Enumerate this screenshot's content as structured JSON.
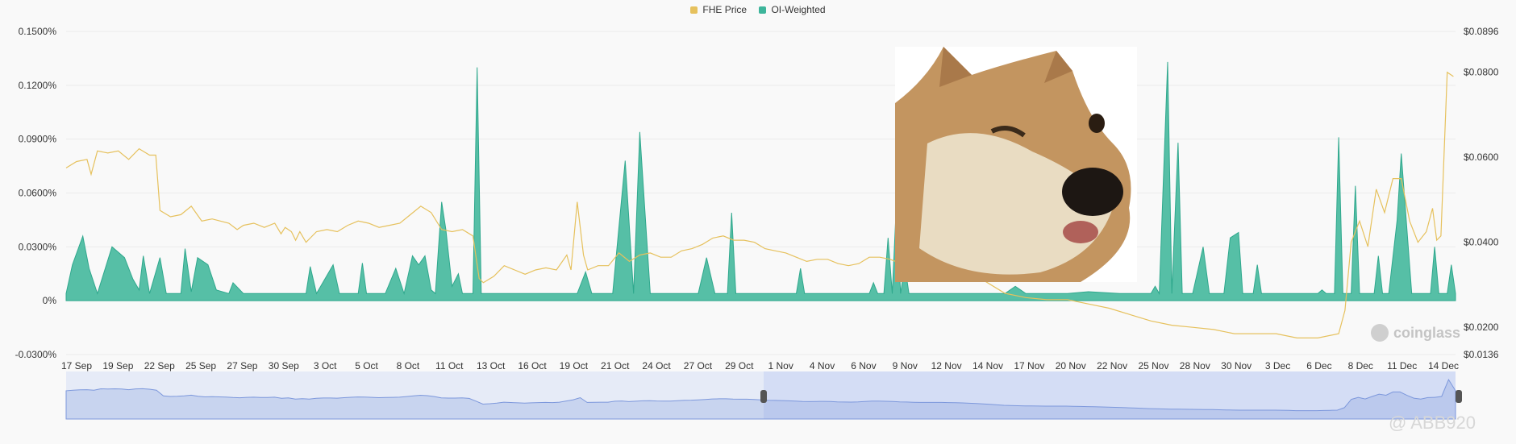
{
  "legend": {
    "items": [
      {
        "label": "FHE Price",
        "color": "#e6c15d"
      },
      {
        "label": "OI-Weighted",
        "color": "#3db59b"
      }
    ]
  },
  "watermark": {
    "brand": "coinglass",
    "user": "@ ABB920"
  },
  "photo": {
    "icon": "winking-shiba-dog"
  },
  "chart_data": {
    "type": "area",
    "y_left": {
      "ticks": [
        "0.1500%",
        "0.1200%",
        "0.0900%",
        "0.0600%",
        "0.0300%",
        "0%",
        "-0.0300%"
      ],
      "range": [
        -0.03,
        0.15
      ],
      "unit": "%"
    },
    "y_right": {
      "ticks": [
        "$0.0896",
        "$0.0800",
        "$0.0600",
        "$0.0400",
        "$0.0200",
        "$0.0136"
      ],
      "range": [
        0.0136,
        0.0896
      ]
    },
    "x_ticks": [
      "17 Sep",
      "19 Sep",
      "22 Sep",
      "25 Sep",
      "27 Sep",
      "30 Sep",
      "3 Oct",
      "5 Oct",
      "8 Oct",
      "11 Oct",
      "13 Oct",
      "16 Oct",
      "19 Oct",
      "21 Oct",
      "24 Oct",
      "27 Oct",
      "29 Oct",
      "1 Nov",
      "4 Nov",
      "6 Nov",
      "9 Nov",
      "12 Nov",
      "14 Nov",
      "17 Nov",
      "20 Nov",
      "22 Nov",
      "25 Nov",
      "28 Nov",
      "30 Nov",
      "3 Dec",
      "6 Dec",
      "8 Dec",
      "11 Dec",
      "14 Dec"
    ],
    "grid": true,
    "series": [
      {
        "name": "OI-Weighted",
        "color": "#3db59b",
        "axis": "left",
        "points": [
          [
            0,
            0.004
          ],
          [
            3,
            0.02
          ],
          [
            8,
            0.036
          ],
          [
            11,
            0.018
          ],
          [
            15,
            0.004
          ],
          [
            22,
            0.03
          ],
          [
            28,
            0.024
          ],
          [
            32,
            0.012
          ],
          [
            35,
            0.006
          ],
          [
            37,
            0.025
          ],
          [
            40,
            0.004
          ],
          [
            45,
            0.024
          ],
          [
            48,
            0.004
          ],
          [
            55,
            0.004
          ],
          [
            57,
            0.029
          ],
          [
            60,
            0.005
          ],
          [
            63,
            0.024
          ],
          [
            68,
            0.02
          ],
          [
            72,
            0.006
          ],
          [
            78,
            0.004
          ],
          [
            80,
            0.01
          ],
          [
            85,
            0.004
          ],
          [
            115,
            0.004
          ],
          [
            117,
            0.019
          ],
          [
            120,
            0.004
          ],
          [
            128,
            0.02
          ],
          [
            131,
            0.004
          ],
          [
            140,
            0.004
          ],
          [
            142,
            0.021
          ],
          [
            144,
            0.004
          ],
          [
            153,
            0.004
          ],
          [
            158,
            0.018
          ],
          [
            162,
            0.004
          ],
          [
            166,
            0.025
          ],
          [
            169,
            0.02
          ],
          [
            172,
            0.025
          ],
          [
            175,
            0.006
          ],
          [
            177,
            0.004
          ],
          [
            180,
            0.055
          ],
          [
            182,
            0.04
          ],
          [
            185,
            0.008
          ],
          [
            188,
            0.015
          ],
          [
            190,
            0.004
          ],
          [
            195,
            0.004
          ],
          [
            197,
            0.13
          ],
          [
            199,
            0.004
          ],
          [
            245,
            0.004
          ],
          [
            249,
            0.016
          ],
          [
            252,
            0.004
          ],
          [
            262,
            0.004
          ],
          [
            268,
            0.078
          ],
          [
            272,
            0.004
          ],
          [
            275,
            0.094
          ],
          [
            280,
            0.004
          ],
          [
            303,
            0.004
          ],
          [
            307,
            0.024
          ],
          [
            311,
            0.004
          ],
          [
            317,
            0.004
          ],
          [
            319,
            0.049
          ],
          [
            321,
            0.004
          ],
          [
            350,
            0.004
          ],
          [
            352,
            0.018
          ],
          [
            354,
            0.004
          ],
          [
            385,
            0.004
          ],
          [
            387,
            0.01
          ],
          [
            389,
            0.004
          ],
          [
            392,
            0.004
          ],
          [
            394,
            0.035
          ],
          [
            396,
            0.004
          ],
          [
            398,
            0.055
          ],
          [
            400,
            0.004
          ],
          [
            402,
            0.02
          ],
          [
            404,
            0.004
          ],
          [
            450,
            0.004
          ],
          [
            455,
            0.008
          ],
          [
            460,
            0.004
          ],
          [
            480,
            0.004
          ],
          [
            490,
            0.005
          ],
          [
            505,
            0.004
          ],
          [
            520,
            0.004
          ],
          [
            522,
            0.008
          ],
          [
            524,
            0.004
          ],
          [
            528,
            0.133
          ],
          [
            530,
            0.004
          ],
          [
            533,
            0.088
          ],
          [
            535,
            0.004
          ],
          [
            540,
            0.004
          ],
          [
            545,
            0.03
          ],
          [
            548,
            0.004
          ],
          [
            555,
            0.004
          ],
          [
            558,
            0.035
          ],
          [
            562,
            0.038
          ],
          [
            564,
            0.004
          ],
          [
            569,
            0.004
          ],
          [
            571,
            0.02
          ],
          [
            573,
            0.004
          ],
          [
            580,
            0.004
          ],
          [
            600,
            0.004
          ],
          [
            602,
            0.006
          ],
          [
            604,
            0.004
          ],
          [
            608,
            0.004
          ],
          [
            610,
            0.091
          ],
          [
            612,
            0.004
          ],
          [
            616,
            0.004
          ],
          [
            618,
            0.064
          ],
          [
            620,
            0.004
          ],
          [
            627,
            0.004
          ],
          [
            629,
            0.025
          ],
          [
            631,
            0.004
          ],
          [
            634,
            0.004
          ],
          [
            638,
            0.045
          ],
          [
            640,
            0.082
          ],
          [
            645,
            0.004
          ],
          [
            654,
            0.004
          ],
          [
            656,
            0.03
          ],
          [
            658,
            0.004
          ],
          [
            662,
            0.004
          ],
          [
            664,
            0.02
          ],
          [
            666,
            0.004
          ]
        ]
      },
      {
        "name": "FHE Price",
        "color": "#e6c15d",
        "axis": "right",
        "points": [
          [
            0,
            0.0575
          ],
          [
            5,
            0.059
          ],
          [
            10,
            0.0595
          ],
          [
            12,
            0.056
          ],
          [
            15,
            0.0615
          ],
          [
            20,
            0.061
          ],
          [
            25,
            0.0615
          ],
          [
            30,
            0.0595
          ],
          [
            35,
            0.062
          ],
          [
            40,
            0.0605
          ],
          [
            43,
            0.0605
          ],
          [
            45,
            0.0475
          ],
          [
            50,
            0.046
          ],
          [
            55,
            0.0465
          ],
          [
            60,
            0.0485
          ],
          [
            65,
            0.045
          ],
          [
            70,
            0.0455
          ],
          [
            78,
            0.0445
          ],
          [
            82,
            0.043
          ],
          [
            85,
            0.044
          ],
          [
            90,
            0.0445
          ],
          [
            95,
            0.0435
          ],
          [
            100,
            0.0445
          ],
          [
            103,
            0.042
          ],
          [
            105,
            0.0435
          ],
          [
            108,
            0.0425
          ],
          [
            110,
            0.0405
          ],
          [
            112,
            0.0425
          ],
          [
            115,
            0.04
          ],
          [
            120,
            0.0425
          ],
          [
            125,
            0.043
          ],
          [
            130,
            0.0425
          ],
          [
            135,
            0.044
          ],
          [
            140,
            0.045
          ],
          [
            145,
            0.0445
          ],
          [
            150,
            0.0435
          ],
          [
            155,
            0.044
          ],
          [
            160,
            0.0445
          ],
          [
            165,
            0.0465
          ],
          [
            170,
            0.0485
          ],
          [
            175,
            0.047
          ],
          [
            180,
            0.043
          ],
          [
            185,
            0.0425
          ],
          [
            190,
            0.043
          ],
          [
            195,
            0.0415
          ],
          [
            198,
            0.0315
          ],
          [
            200,
            0.0305
          ],
          [
            205,
            0.032
          ],
          [
            210,
            0.0345
          ],
          [
            215,
            0.0335
          ],
          [
            220,
            0.0325
          ],
          [
            225,
            0.0335
          ],
          [
            230,
            0.034
          ],
          [
            235,
            0.0335
          ],
          [
            240,
            0.037
          ],
          [
            242,
            0.0335
          ],
          [
            245,
            0.0495
          ],
          [
            248,
            0.037
          ],
          [
            250,
            0.0335
          ],
          [
            255,
            0.0345
          ],
          [
            260,
            0.0345
          ],
          [
            265,
            0.0375
          ],
          [
            270,
            0.0355
          ],
          [
            275,
            0.037
          ],
          [
            280,
            0.0375
          ],
          [
            285,
            0.0365
          ],
          [
            290,
            0.0365
          ],
          [
            295,
            0.038
          ],
          [
            300,
            0.0385
          ],
          [
            305,
            0.0395
          ],
          [
            310,
            0.041
          ],
          [
            315,
            0.0415
          ],
          [
            320,
            0.0405
          ],
          [
            325,
            0.0405
          ],
          [
            330,
            0.04
          ],
          [
            335,
            0.0385
          ],
          [
            340,
            0.038
          ],
          [
            345,
            0.0375
          ],
          [
            350,
            0.0365
          ],
          [
            355,
            0.0355
          ],
          [
            360,
            0.036
          ],
          [
            365,
            0.036
          ],
          [
            370,
            0.035
          ],
          [
            375,
            0.0345
          ],
          [
            380,
            0.035
          ],
          [
            385,
            0.0365
          ],
          [
            390,
            0.0365
          ],
          [
            395,
            0.036
          ],
          [
            400,
            0.035
          ],
          [
            410,
            0.034
          ],
          [
            420,
            0.034
          ],
          [
            430,
            0.033
          ],
          [
            440,
            0.031
          ],
          [
            450,
            0.028
          ],
          [
            460,
            0.027
          ],
          [
            470,
            0.0265
          ],
          [
            480,
            0.0265
          ],
          [
            490,
            0.0255
          ],
          [
            500,
            0.0245
          ],
          [
            510,
            0.023
          ],
          [
            520,
            0.0215
          ],
          [
            530,
            0.0205
          ],
          [
            540,
            0.02
          ],
          [
            550,
            0.0195
          ],
          [
            560,
            0.0185
          ],
          [
            570,
            0.0185
          ],
          [
            580,
            0.0185
          ],
          [
            590,
            0.0175
          ],
          [
            600,
            0.0175
          ],
          [
            610,
            0.0185
          ],
          [
            613,
            0.024
          ],
          [
            616,
            0.04
          ],
          [
            620,
            0.045
          ],
          [
            624,
            0.039
          ],
          [
            628,
            0.0525
          ],
          [
            632,
            0.047
          ],
          [
            636,
            0.055
          ],
          [
            640,
            0.055
          ],
          [
            644,
            0.045
          ],
          [
            648,
            0.04
          ],
          [
            652,
            0.0425
          ],
          [
            655,
            0.048
          ],
          [
            657,
            0.0405
          ],
          [
            659,
            0.0415
          ],
          [
            662,
            0.08
          ],
          [
            665,
            0.079
          ]
        ]
      }
    ],
    "navigator": {
      "selected_range": "1 Nov - 14 Dec",
      "series_color": "#6f8fd8"
    }
  }
}
